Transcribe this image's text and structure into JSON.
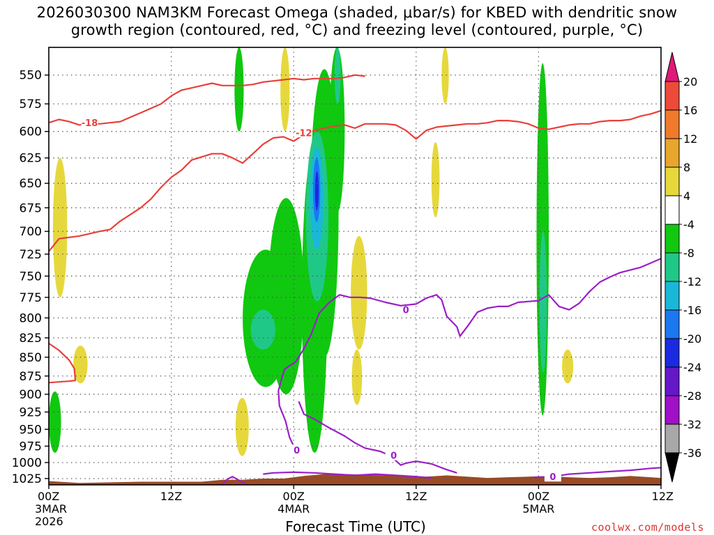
{
  "title": {
    "line1": "2026030300 NAM3KM Forecast Omega (shaded, μbar/s) for KBED with dendritic snow",
    "line2": "growth region (contoured, red, °C) and freezing level (contoured, purple, °C)"
  },
  "xlabel": "Forecast Time (UTC)",
  "credit": "coolwx.com/models",
  "colors": {
    "dgz": "#e8403a",
    "freezing": "#9a1ec8",
    "terrain": "#9c4a24",
    "grid": "#555555"
  },
  "chart_data": {
    "type": "heatmap",
    "title": "2026030300 NAM3KM Forecast Omega (shaded, μbar/s) for KBED with dendritic snow growth region (contoured, red, °C) and freezing level (contoured, purple, °C)",
    "xlabel": "Forecast Time (UTC)",
    "ylabel": "",
    "x_unit": "forecast hour from 2026-03-03 00Z",
    "xlim": [
      0,
      60
    ],
    "ylim": [
      1035,
      527
    ],
    "y_log_pressure": true,
    "grid": true,
    "xticks": [
      {
        "h": 0,
        "label": "00Z",
        "sub1": "3MAR",
        "sub2": "2026"
      },
      {
        "h": 12,
        "label": "12Z",
        "sub1": "",
        "sub2": ""
      },
      {
        "h": 24,
        "label": "00Z",
        "sub1": "4MAR",
        "sub2": ""
      },
      {
        "h": 36,
        "label": "12Z",
        "sub1": "",
        "sub2": ""
      },
      {
        "h": 48,
        "label": "00Z",
        "sub1": "5MAR",
        "sub2": ""
      },
      {
        "h": 60,
        "label": "12Z",
        "sub1": "",
        "sub2": ""
      }
    ],
    "yticks": [
      550,
      575,
      600,
      625,
      650,
      675,
      700,
      725,
      750,
      775,
      800,
      825,
      850,
      875,
      900,
      925,
      950,
      975,
      1000,
      1025
    ],
    "colorbar": {
      "labels": [
        "20",
        "16",
        "12",
        "8",
        "4",
        "-4",
        "-8",
        "-12",
        "-16",
        "-20",
        "-24",
        "-28",
        "-32",
        "-36"
      ],
      "bins": [
        {
          "range": "above 20",
          "color": "#e0187a"
        },
        {
          "range": "16 to 20",
          "color": "#ee4a3a"
        },
        {
          "range": "12 to 16",
          "color": "#f07a2a"
        },
        {
          "range": "8 to 12",
          "color": "#e8a62c"
        },
        {
          "range": "4 to 8",
          "color": "#e6d83c"
        },
        {
          "range": "-4 to 4",
          "color": "#ffffff"
        },
        {
          "range": "-8 to -4",
          "color": "#10c810"
        },
        {
          "range": "-12 to -8",
          "color": "#20c888"
        },
        {
          "range": "-16 to -12",
          "color": "#1ab8d8"
        },
        {
          "range": "-20 to -16",
          "color": "#1a78f0"
        },
        {
          "range": "-24 to -20",
          "color": "#1a2ae0"
        },
        {
          "range": "-28 to -24",
          "color": "#6418c8"
        },
        {
          "range": "-32 to -28",
          "color": "#a010c8"
        },
        {
          "range": "-36 to -32",
          "color": "#a8a8a8"
        },
        {
          "range": "below -36",
          "color": "#000000"
        }
      ]
    },
    "omega_shading": [
      {
        "level": -4,
        "color": "#10c810",
        "t0": 18.2,
        "t1": 19.1,
        "p0": 527,
        "p1": 600
      },
      {
        "level": -4,
        "color": "#10c810",
        "t0": 0,
        "t1": 1.2,
        "p0": 896,
        "p1": 985
      },
      {
        "level": -4,
        "color": "#10c810",
        "t0": 19.0,
        "t1": 23.5,
        "p0": 720,
        "p1": 890
      },
      {
        "level": -4,
        "color": "#10c810",
        "t0": 21.5,
        "t1": 25.0,
        "p0": 665,
        "p1": 900
      },
      {
        "level": -4,
        "color": "#10c810",
        "t0": 24.8,
        "t1": 27.3,
        "p0": 615,
        "p1": 985
      },
      {
        "level": -4,
        "color": "#10c810",
        "t0": 25.6,
        "t1": 28.4,
        "p0": 545,
        "p1": 850
      },
      {
        "level": -4,
        "color": "#10c810",
        "t0": 27.5,
        "t1": 29.0,
        "p0": 527,
        "p1": 680
      },
      {
        "level": -4,
        "color": "#10c810",
        "t0": 47.8,
        "t1": 49.0,
        "p0": 540,
        "p1": 930
      },
      {
        "level": -8,
        "color": "#20c888",
        "t0": 19.8,
        "t1": 22.2,
        "p0": 790,
        "p1": 840
      },
      {
        "level": -8,
        "color": "#20c888",
        "t0": 25.2,
        "t1": 27.4,
        "p0": 600,
        "p1": 780
      },
      {
        "level": -8,
        "color": "#20c888",
        "t0": 48.1,
        "t1": 48.8,
        "p0": 700,
        "p1": 870
      },
      {
        "level": -8,
        "color": "#20c888",
        "t0": 28.0,
        "t1": 28.6,
        "p0": 527,
        "p1": 575
      },
      {
        "level": -12,
        "color": "#1ab8d8",
        "t0": 25.6,
        "t1": 26.9,
        "p0": 615,
        "p1": 720
      },
      {
        "level": -16,
        "color": "#1a78f0",
        "t0": 25.9,
        "t1": 26.6,
        "p0": 625,
        "p1": 690
      },
      {
        "level": -20,
        "color": "#1a2ae0",
        "t0": 26.1,
        "t1": 26.45,
        "p0": 638,
        "p1": 678
      },
      {
        "level": 4,
        "color": "#e6d83c",
        "t0": 0.4,
        "t1": 1.8,
        "p0": 625,
        "p1": 775
      },
      {
        "level": 4,
        "color": "#e6d83c",
        "t0": 2.4,
        "t1": 3.8,
        "p0": 835,
        "p1": 885
      },
      {
        "level": 4,
        "color": "#e6d83c",
        "t0": 18.3,
        "t1": 19.6,
        "p0": 905,
        "p1": 990
      },
      {
        "level": 4,
        "color": "#e6d83c",
        "t0": 22.7,
        "t1": 23.6,
        "p0": 527,
        "p1": 600
      },
      {
        "level": 4,
        "color": "#e6d83c",
        "t0": 29.6,
        "t1": 31.2,
        "p0": 705,
        "p1": 840
      },
      {
        "level": 4,
        "color": "#e6d83c",
        "t0": 29.7,
        "t1": 30.7,
        "p0": 840,
        "p1": 915
      },
      {
        "level": 4,
        "color": "#e6d83c",
        "t0": 37.5,
        "t1": 38.3,
        "p0": 610,
        "p1": 685
      },
      {
        "level": 4,
        "color": "#e6d83c",
        "t0": 38.5,
        "t1": 39.2,
        "p0": 527,
        "p1": 575
      },
      {
        "level": 4,
        "color": "#e6d83c",
        "t0": 50.3,
        "t1": 51.4,
        "p0": 840,
        "p1": 885
      }
    ],
    "dgz_contours": [
      {
        "label": "-18",
        "label_at": [
          4.0,
          592
        ],
        "points": [
          [
            0,
            592
          ],
          [
            1,
            589
          ],
          [
            2,
            591
          ],
          [
            3,
            594
          ],
          [
            4,
            592
          ],
          [
            5,
            593
          ],
          [
            6,
            592
          ],
          [
            7,
            591
          ],
          [
            8,
            587
          ],
          [
            9,
            583
          ],
          [
            10,
            579
          ],
          [
            11,
            575
          ],
          [
            12,
            568
          ],
          [
            13,
            563
          ],
          [
            14,
            561
          ],
          [
            15,
            559
          ],
          [
            16,
            557
          ],
          [
            17,
            559
          ],
          [
            18,
            559
          ],
          [
            19,
            559
          ],
          [
            20,
            558
          ],
          [
            21,
            556
          ],
          [
            22,
            555
          ],
          [
            23,
            554
          ],
          [
            24,
            553
          ],
          [
            25,
            554
          ],
          [
            26,
            553
          ],
          [
            27,
            553
          ],
          [
            28,
            553
          ],
          [
            29,
            552
          ],
          [
            30,
            550
          ],
          [
            31,
            551
          ]
        ]
      },
      {
        "label": "-12",
        "label_at": [
          25.0,
          601
        ],
        "points": [
          [
            0,
            722
          ],
          [
            1,
            708
          ],
          [
            3,
            705
          ],
          [
            5,
            700
          ],
          [
            6,
            698
          ],
          [
            7,
            689
          ],
          [
            8,
            682
          ],
          [
            9,
            675
          ],
          [
            10,
            666
          ],
          [
            11,
            654
          ],
          [
            12,
            644
          ],
          [
            13,
            637
          ],
          [
            14,
            627
          ],
          [
            15,
            624
          ],
          [
            16,
            621
          ],
          [
            17,
            621
          ],
          [
            18,
            625
          ],
          [
            19,
            630
          ],
          [
            20,
            621
          ],
          [
            21,
            612
          ],
          [
            22,
            606
          ],
          [
            23,
            605
          ],
          [
            24,
            609
          ],
          [
            25,
            603
          ],
          [
            26,
            599
          ],
          [
            27,
            597
          ],
          [
            28,
            595
          ],
          [
            29,
            594
          ],
          [
            30,
            597
          ],
          [
            31,
            593
          ],
          [
            32,
            593
          ],
          [
            33,
            593
          ],
          [
            34,
            594
          ],
          [
            35,
            599
          ],
          [
            36,
            607
          ],
          [
            37,
            599
          ],
          [
            38,
            596
          ],
          [
            39,
            595
          ],
          [
            40,
            594
          ],
          [
            41,
            593
          ],
          [
            42,
            593
          ],
          [
            43,
            592
          ],
          [
            44,
            590
          ],
          [
            45,
            590
          ],
          [
            46,
            591
          ],
          [
            47,
            593
          ],
          [
            48,
            597
          ],
          [
            49,
            598
          ],
          [
            50,
            596
          ],
          [
            51,
            594
          ],
          [
            52,
            593
          ],
          [
            53,
            593
          ],
          [
            54,
            591
          ],
          [
            55,
            590
          ],
          [
            56,
            590
          ],
          [
            57,
            589
          ],
          [
            58,
            586
          ],
          [
            59,
            584
          ],
          [
            60,
            581
          ]
        ]
      },
      {
        "label": "",
        "label_at": null,
        "points": [
          [
            0,
            832
          ],
          [
            1,
            841
          ],
          [
            2,
            854
          ],
          [
            2.5,
            865
          ],
          [
            2.6,
            881
          ],
          [
            2,
            882
          ],
          [
            1,
            883
          ],
          [
            0,
            884
          ]
        ]
      }
    ],
    "freezing_contours": [
      {
        "label": "0",
        "label_at": [
          35.0,
          790
        ],
        "points": [
          [
            16.5,
            1039
          ],
          [
            17,
            1034
          ],
          [
            17.5,
            1026
          ],
          [
            18,
            1022
          ],
          [
            19,
            1031
          ],
          [
            20,
            1039
          ]
        ]
      },
      {
        "label": "0",
        "label_at": [
          24.3,
          981
        ],
        "points": [
          [
            24.3,
            987
          ],
          [
            24.0,
            975
          ],
          [
            23.6,
            962
          ],
          [
            23.2,
            938
          ],
          [
            22.6,
            916
          ],
          [
            22.5,
            895
          ],
          [
            22.8,
            880
          ],
          [
            23.1,
            866
          ],
          [
            24.2,
            856
          ],
          [
            25.0,
            839
          ],
          [
            25.7,
            821
          ],
          [
            26.5,
            794
          ],
          [
            27.5,
            781
          ],
          [
            28.5,
            772
          ],
          [
            29.5,
            775
          ],
          [
            30.5,
            775
          ],
          [
            31.5,
            776
          ],
          [
            33,
            781
          ],
          [
            34.5,
            785
          ],
          [
            36,
            783
          ],
          [
            37,
            776
          ],
          [
            38,
            772
          ],
          [
            38.5,
            778
          ],
          [
            39,
            798
          ],
          [
            40,
            811
          ],
          [
            40.3,
            823
          ],
          [
            41,
            811
          ],
          [
            42,
            793
          ],
          [
            43,
            788
          ],
          [
            44,
            786
          ],
          [
            45,
            786
          ],
          [
            46,
            781
          ],
          [
            47,
            780
          ],
          [
            48,
            779
          ],
          [
            49,
            772
          ],
          [
            50,
            786
          ],
          [
            51,
            790
          ],
          [
            52,
            782
          ],
          [
            53,
            768
          ],
          [
            54,
            757
          ],
          [
            55,
            751
          ],
          [
            56,
            746
          ],
          [
            57,
            743
          ],
          [
            58,
            740
          ],
          [
            59,
            735
          ],
          [
            60,
            730
          ]
        ]
      },
      {
        "label": "0",
        "label_at": [
          33.8,
          989
        ],
        "points": [
          [
            24.5,
            910
          ],
          [
            25.0,
            928
          ],
          [
            26.0,
            935
          ],
          [
            27.5,
            948
          ],
          [
            29,
            960
          ],
          [
            30,
            970
          ],
          [
            31,
            978
          ],
          [
            32.5,
            983
          ],
          [
            33.5,
            990
          ],
          [
            34.5,
            1004
          ],
          [
            35,
            1001
          ],
          [
            36,
            998
          ],
          [
            37.5,
            1002
          ],
          [
            39,
            1011
          ],
          [
            40,
            1016
          ]
        ]
      },
      {
        "label": "0",
        "label_at": [
          49.4,
          1022
        ],
        "points": [
          [
            47.5,
            1023
          ],
          [
            48,
            1023
          ],
          [
            49.4,
            1022
          ],
          [
            51,
            1018
          ],
          [
            53,
            1016
          ],
          [
            55,
            1014
          ],
          [
            57,
            1012
          ],
          [
            59,
            1009
          ],
          [
            60,
            1008
          ]
        ]
      },
      {
        "label": "",
        "label_at": null,
        "points": [
          [
            21.0,
            1018
          ],
          [
            22,
            1016
          ],
          [
            24,
            1015
          ],
          [
            26,
            1016
          ],
          [
            28,
            1018
          ],
          [
            30,
            1020
          ],
          [
            32,
            1018
          ],
          [
            34,
            1020
          ],
          [
            36,
            1022
          ],
          [
            37.5,
            1024
          ]
        ]
      }
    ],
    "terrain_top_hpa": [
      [
        0,
        1029
      ],
      [
        3,
        1032
      ],
      [
        6,
        1031
      ],
      [
        9,
        1030
      ],
      [
        12,
        1030
      ],
      [
        15,
        1030
      ],
      [
        17,
        1027
      ],
      [
        19,
        1027
      ],
      [
        21,
        1025
      ],
      [
        23,
        1025
      ],
      [
        25,
        1021
      ],
      [
        27,
        1018
      ],
      [
        29,
        1018
      ],
      [
        31,
        1019
      ],
      [
        33,
        1020
      ],
      [
        35,
        1021
      ],
      [
        37,
        1022
      ],
      [
        39,
        1020
      ],
      [
        41,
        1022
      ],
      [
        43,
        1024
      ],
      [
        45,
        1023
      ],
      [
        47,
        1022
      ],
      [
        49,
        1021
      ],
      [
        51,
        1023
      ],
      [
        53,
        1024
      ],
      [
        55,
        1023
      ],
      [
        57,
        1021
      ],
      [
        59,
        1023
      ],
      [
        60,
        1024
      ]
    ]
  }
}
